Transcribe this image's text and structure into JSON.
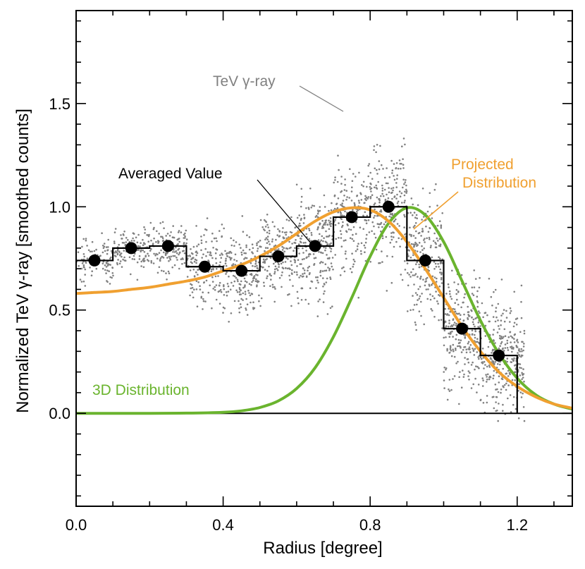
{
  "chart_data": {
    "type": "line",
    "title": "",
    "xlabel": "Radius [degree]",
    "ylabel": "Normalized TeV γ-ray [smoothed counts]",
    "xlim": [
      0.0,
      1.35
    ],
    "ylim": [
      -0.45,
      1.95
    ],
    "xticks": [
      0.0,
      0.4,
      0.8,
      1.2
    ],
    "xtick_labels": [
      "0.0",
      "0.4",
      "0.8",
      "1.2"
    ],
    "yticks": [
      0.0,
      0.5,
      1.0,
      1.5
    ],
    "ytick_labels": [
      "0.0",
      "0.5",
      "1.0",
      "1.5"
    ],
    "grid": false,
    "zero_line": 0.0,
    "colors": {
      "scatter": "#808080",
      "histogram": "#000000",
      "averaged_points": "#000000",
      "projected": "#f0a030",
      "three_d": "#6ab42e",
      "annotation_gray": "#808080"
    },
    "series": [
      {
        "name": "Averaged Value",
        "kind": "step-histogram",
        "bin_edges": [
          0.0,
          0.1,
          0.2,
          0.3,
          0.4,
          0.5,
          0.6,
          0.7,
          0.8,
          0.9,
          1.0,
          1.1,
          1.2
        ],
        "values": [
          0.74,
          0.8,
          0.81,
          0.71,
          0.69,
          0.76,
          0.81,
          0.95,
          1.0,
          0.74,
          0.41,
          0.28
        ],
        "drop_to": 0.0
      },
      {
        "name": "Averaged Value points",
        "kind": "points",
        "x": [
          0.05,
          0.15,
          0.25,
          0.35,
          0.45,
          0.55,
          0.65,
          0.75,
          0.85,
          0.95,
          1.05,
          1.15
        ],
        "y": [
          0.74,
          0.8,
          0.81,
          0.71,
          0.69,
          0.76,
          0.81,
          0.95,
          1.0,
          0.74,
          0.41,
          0.28
        ]
      },
      {
        "name": "Projected Distribution",
        "kind": "curve",
        "x": [
          0.0,
          0.05,
          0.1,
          0.15,
          0.2,
          0.25,
          0.3,
          0.35,
          0.4,
          0.45,
          0.5,
          0.55,
          0.6,
          0.65,
          0.7,
          0.75,
          0.8,
          0.85,
          0.9,
          0.95,
          1.0,
          1.05,
          1.1,
          1.15,
          1.2,
          1.25,
          1.3,
          1.35
        ],
        "y": [
          0.58,
          0.585,
          0.59,
          0.6,
          0.61,
          0.625,
          0.64,
          0.66,
          0.69,
          0.72,
          0.76,
          0.81,
          0.87,
          0.93,
          0.975,
          0.995,
          0.985,
          0.93,
          0.83,
          0.7,
          0.56,
          0.42,
          0.3,
          0.2,
          0.13,
          0.08,
          0.045,
          0.025
        ]
      },
      {
        "name": "3D Distribution",
        "kind": "curve",
        "x": [
          0.0,
          0.1,
          0.2,
          0.3,
          0.4,
          0.45,
          0.5,
          0.55,
          0.6,
          0.65,
          0.7,
          0.75,
          0.8,
          0.85,
          0.9,
          0.95,
          1.0,
          1.05,
          1.1,
          1.15,
          1.2,
          1.25,
          1.3,
          1.35
        ],
        "y": [
          0.0,
          0.0,
          0.0,
          0.001,
          0.005,
          0.012,
          0.028,
          0.06,
          0.12,
          0.22,
          0.37,
          0.56,
          0.76,
          0.92,
          0.995,
          0.96,
          0.83,
          0.64,
          0.45,
          0.29,
          0.17,
          0.09,
          0.045,
          0.02
        ]
      },
      {
        "name": "TeV γ-ray",
        "kind": "scatter",
        "description_of_cloud": "smoothed-count pixels scattered around the averaged profile",
        "x_range": [
          0.0,
          1.22
        ],
        "note": "individual points generated to approximate the observed spread"
      }
    ],
    "annotations": [
      {
        "text": "TeV γ-ray",
        "target": "scatter cloud",
        "color": "#808080"
      },
      {
        "text": "Averaged Value",
        "target": "histogram at x=0.65",
        "color": "#000000"
      },
      {
        "text_lines": [
          "Projected",
          "Distribution"
        ],
        "target": "orange curve near x=0.85",
        "color": "#f0a030"
      },
      {
        "text": "3D Distribution",
        "target": "green curve",
        "color": "#6ab42e"
      }
    ]
  }
}
